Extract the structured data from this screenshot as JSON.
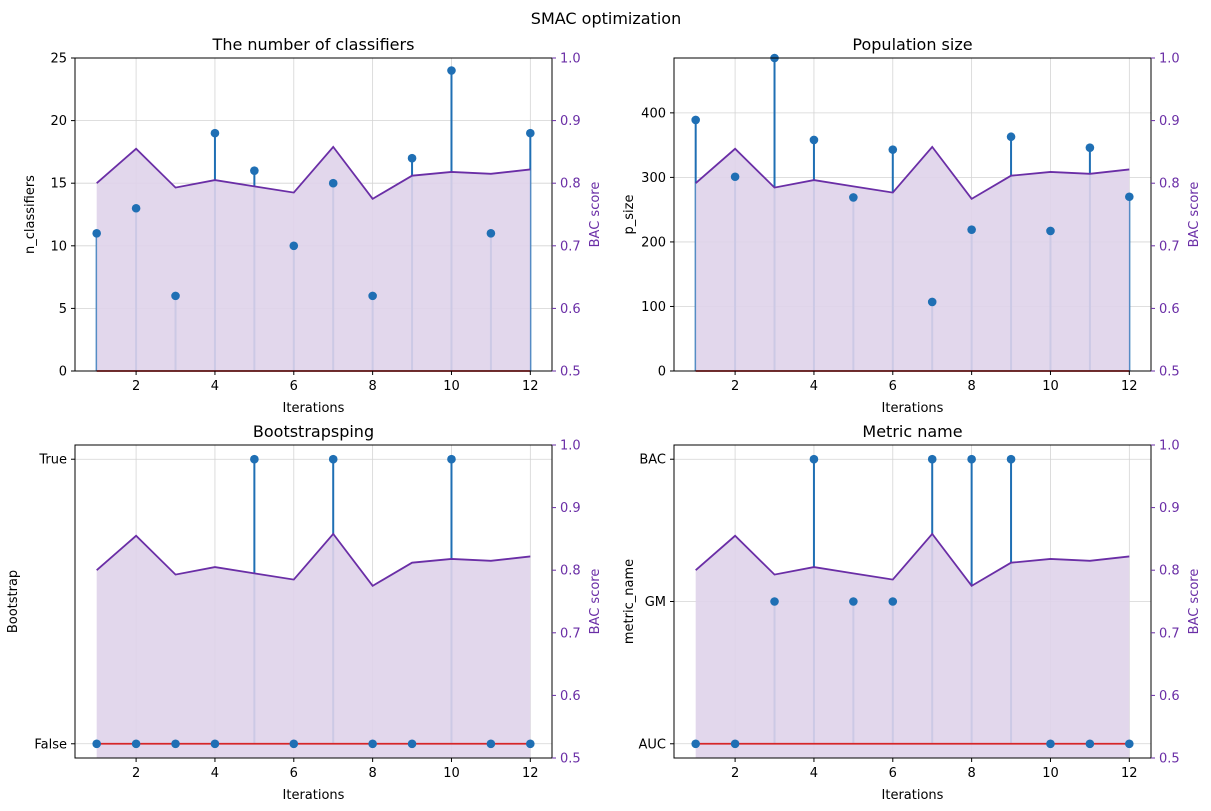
{
  "figure": {
    "suptitle": "SMAC optimization"
  },
  "colors": {
    "stem": "#1f6fb4",
    "baseline": "#d62728",
    "score_line": "#6a2ea6",
    "score_fill": "#dfd3ea",
    "right_axis": "#6a2ea6",
    "grid": "#d4d4d4"
  },
  "chart_data": [
    {
      "type": "stem+area",
      "title": "The number of classifiers",
      "xlabel": "Iterations",
      "ylabel": "n_classifiers",
      "y2label": "BAC score",
      "x": [
        1,
        2,
        3,
        4,
        5,
        6,
        7,
        8,
        9,
        10,
        11,
        12
      ],
      "xticks": [
        2,
        4,
        6,
        8,
        10,
        12
      ],
      "xlim": [
        0.45,
        12.55
      ],
      "ylim": [
        0,
        25
      ],
      "yticks": [
        0,
        5,
        10,
        15,
        20,
        25
      ],
      "ytick_labels": [
        "0",
        "5",
        "10",
        "15",
        "20",
        "25"
      ],
      "values": [
        11,
        13,
        6,
        19,
        16,
        10,
        15,
        6,
        17,
        24,
        11,
        19
      ],
      "y2lim": [
        0.5,
        1.0
      ],
      "y2ticks": [
        0.5,
        0.6,
        0.7,
        0.8,
        0.9,
        1.0
      ],
      "y2tick_labels": [
        "0.5",
        "0.6",
        "0.7",
        "0.8",
        "0.9",
        "1.0"
      ],
      "bac_score": [
        0.8,
        0.855,
        0.793,
        0.805,
        0.795,
        0.785,
        0.858,
        0.775,
        0.812,
        0.818,
        0.815,
        0.822
      ]
    },
    {
      "type": "stem+area",
      "title": "Population size",
      "xlabel": "Iterations",
      "ylabel": "p_size",
      "y2label": "BAC score",
      "x": [
        1,
        2,
        3,
        4,
        5,
        6,
        7,
        8,
        9,
        10,
        11,
        12
      ],
      "xticks": [
        2,
        4,
        6,
        8,
        10,
        12
      ],
      "xlim": [
        0.45,
        12.55
      ],
      "ylim": [
        0,
        485
      ],
      "yticks": [
        0,
        100,
        200,
        300,
        400
      ],
      "ytick_labels": [
        "0",
        "100",
        "200",
        "300",
        "400"
      ],
      "values": [
        389,
        301,
        485,
        358,
        269,
        343,
        107,
        219,
        363,
        217,
        346,
        270
      ],
      "y2lim": [
        0.5,
        1.0
      ],
      "y2ticks": [
        0.5,
        0.6,
        0.7,
        0.8,
        0.9,
        1.0
      ],
      "y2tick_labels": [
        "0.5",
        "0.6",
        "0.7",
        "0.8",
        "0.9",
        "1.0"
      ],
      "bac_score": [
        0.8,
        0.855,
        0.793,
        0.805,
        0.795,
        0.785,
        0.858,
        0.775,
        0.812,
        0.818,
        0.815,
        0.822
      ]
    },
    {
      "type": "stem+area",
      "title": "Bootstrapsping",
      "xlabel": "Iterations",
      "ylabel": "Bootstrap",
      "y2label": "BAC score",
      "x": [
        1,
        2,
        3,
        4,
        5,
        6,
        7,
        8,
        9,
        10,
        11,
        12
      ],
      "xticks": [
        2,
        4,
        6,
        8,
        10,
        12
      ],
      "xlim": [
        0.45,
        12.55
      ],
      "ylim": [
        -0.05,
        1.05
      ],
      "yticks": [
        0,
        1
      ],
      "ytick_labels": [
        "False",
        "True"
      ],
      "values": [
        0,
        0,
        0,
        0,
        1,
        0,
        1,
        0,
        0,
        1,
        0,
        0
      ],
      "y2lim": [
        0.5,
        1.0
      ],
      "y2ticks": [
        0.5,
        0.6,
        0.7,
        0.8,
        0.9,
        1.0
      ],
      "y2tick_labels": [
        "0.5",
        "0.6",
        "0.7",
        "0.8",
        "0.9",
        "1.0"
      ],
      "bac_score": [
        0.8,
        0.855,
        0.793,
        0.805,
        0.795,
        0.785,
        0.858,
        0.775,
        0.812,
        0.818,
        0.815,
        0.822
      ]
    },
    {
      "type": "stem+area",
      "title": "Metric name",
      "xlabel": "Iterations",
      "ylabel": "metric_name",
      "y2label": "BAC score",
      "x": [
        1,
        2,
        3,
        4,
        5,
        6,
        7,
        8,
        9,
        10,
        11,
        12
      ],
      "xticks": [
        2,
        4,
        6,
        8,
        10,
        12
      ],
      "xlim": [
        0.45,
        12.55
      ],
      "ylim": [
        -0.1,
        2.1
      ],
      "yticks": [
        0,
        1,
        2
      ],
      "ytick_labels": [
        "AUC",
        "GM",
        "BAC"
      ],
      "values": [
        0,
        0,
        1,
        2,
        1,
        1,
        2,
        2,
        2,
        0,
        0,
        0
      ],
      "y2lim": [
        0.5,
        1.0
      ],
      "y2ticks": [
        0.5,
        0.6,
        0.7,
        0.8,
        0.9,
        1.0
      ],
      "y2tick_labels": [
        "0.5",
        "0.6",
        "0.7",
        "0.8",
        "0.9",
        "1.0"
      ],
      "bac_score": [
        0.8,
        0.855,
        0.793,
        0.805,
        0.795,
        0.785,
        0.858,
        0.775,
        0.812,
        0.818,
        0.815,
        0.822
      ]
    }
  ]
}
